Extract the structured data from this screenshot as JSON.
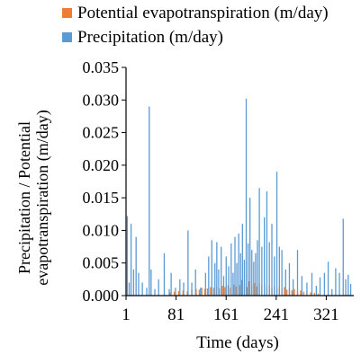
{
  "chart_data": {
    "type": "bar",
    "xlabel": "Time (days)",
    "ylabel_lines": [
      "Precipitation / Potential",
      "evapotranspiration (m/day)"
    ],
    "xlim": [
      1,
      365
    ],
    "ylim": [
      0,
      0.035
    ],
    "x_ticks": [
      "1",
      "81",
      "161",
      "241",
      "321"
    ],
    "x_tick_values": [
      1,
      81,
      161,
      241,
      321
    ],
    "y_ticks": [
      "0.000",
      "0.005",
      "0.010",
      "0.015",
      "0.020",
      "0.025",
      "0.030",
      "0.035"
    ],
    "y_tick_values": [
      0,
      0.005,
      0.01,
      0.015,
      0.02,
      0.025,
      0.03,
      0.035
    ],
    "grid": false,
    "legend_position": "top",
    "series": [
      {
        "name": "Potential evapotranspiration (m/day)",
        "color": "#ED7D31",
        "x": [
          71,
          78,
          85,
          92,
          99,
          106,
          113,
          118,
          122,
          127,
          131,
          136,
          141,
          146,
          150,
          155,
          159,
          164,
          168,
          173,
          177,
          182,
          186,
          190,
          194,
          198,
          202,
          206,
          210,
          214,
          218,
          222,
          226,
          230,
          234,
          238,
          242,
          246,
          250,
          254,
          258,
          262,
          266,
          270,
          275,
          280,
          285,
          290,
          296,
          302,
          308
        ],
        "values": [
          0.0005,
          0.0006,
          0.0007,
          0.0008,
          0.0007,
          0.0009,
          0.001,
          0.0009,
          0.0012,
          0.001,
          0.0011,
          0.0013,
          0.0012,
          0.0014,
          0.0011,
          0.0015,
          0.0013,
          0.0016,
          0.0012,
          0.0017,
          0.0014,
          0.0016,
          0.0024,
          0.0018,
          0.0013,
          0.0022,
          0.0015,
          0.0019,
          0.0014,
          0.0018,
          0.0016,
          0.0017,
          0.0013,
          0.0016,
          0.0012,
          0.0015,
          0.0011,
          0.0014,
          0.001,
          0.0013,
          0.0009,
          0.0011,
          0.0008,
          0.001,
          0.0007,
          0.0008,
          0.0006,
          0.0007,
          0.0005,
          0.0004,
          0.0003
        ]
      },
      {
        "name": "Precipitation (m/day)",
        "color": "#5B9BD5",
        "x": [
          3,
          6,
          9,
          13,
          17,
          21,
          27,
          34,
          38,
          41,
          47,
          53,
          62,
          70,
          73,
          80,
          87,
          93,
          100,
          106,
          112,
          120,
          128,
          133,
          138,
          143,
          146,
          149,
          153,
          157,
          161,
          165,
          169,
          172,
          175,
          178,
          181,
          184,
          187,
          190,
          193,
          196,
          199,
          202,
          205,
          208,
          211,
          214,
          218,
          222,
          226,
          230,
          234,
          238,
          242,
          246,
          250,
          256,
          262,
          268,
          275,
          282,
          290,
          298,
          305,
          311,
          318,
          324,
          330,
          336,
          342,
          348,
          352,
          356,
          360
        ],
        "values": [
          0.0122,
          0.002,
          0.011,
          0.004,
          0.009,
          0.0035,
          0.002,
          0.0012,
          0.029,
          0.004,
          0.001,
          0.0025,
          0.0065,
          0.001,
          0.0035,
          0.0012,
          0.0025,
          0.002,
          0.01,
          0.002,
          0.004,
          0.0012,
          0.0035,
          0.006,
          0.0085,
          0.005,
          0.0082,
          0.004,
          0.0075,
          0.003,
          0.006,
          0.0045,
          0.008,
          0.0035,
          0.009,
          0.005,
          0.0095,
          0.0065,
          0.011,
          0.0055,
          0.0302,
          0.008,
          0.015,
          0.007,
          0.0052,
          0.0065,
          0.0085,
          0.0165,
          0.0075,
          0.012,
          0.016,
          0.0082,
          0.011,
          0.006,
          0.019,
          0.0075,
          0.007,
          0.004,
          0.005,
          0.0025,
          0.007,
          0.003,
          0.002,
          0.0035,
          0.0015,
          0.0028,
          0.0035,
          0.0052,
          0.001,
          0.0042,
          0.0035,
          0.0118,
          0.0025,
          0.0032,
          0.0018
        ]
      }
    ]
  }
}
